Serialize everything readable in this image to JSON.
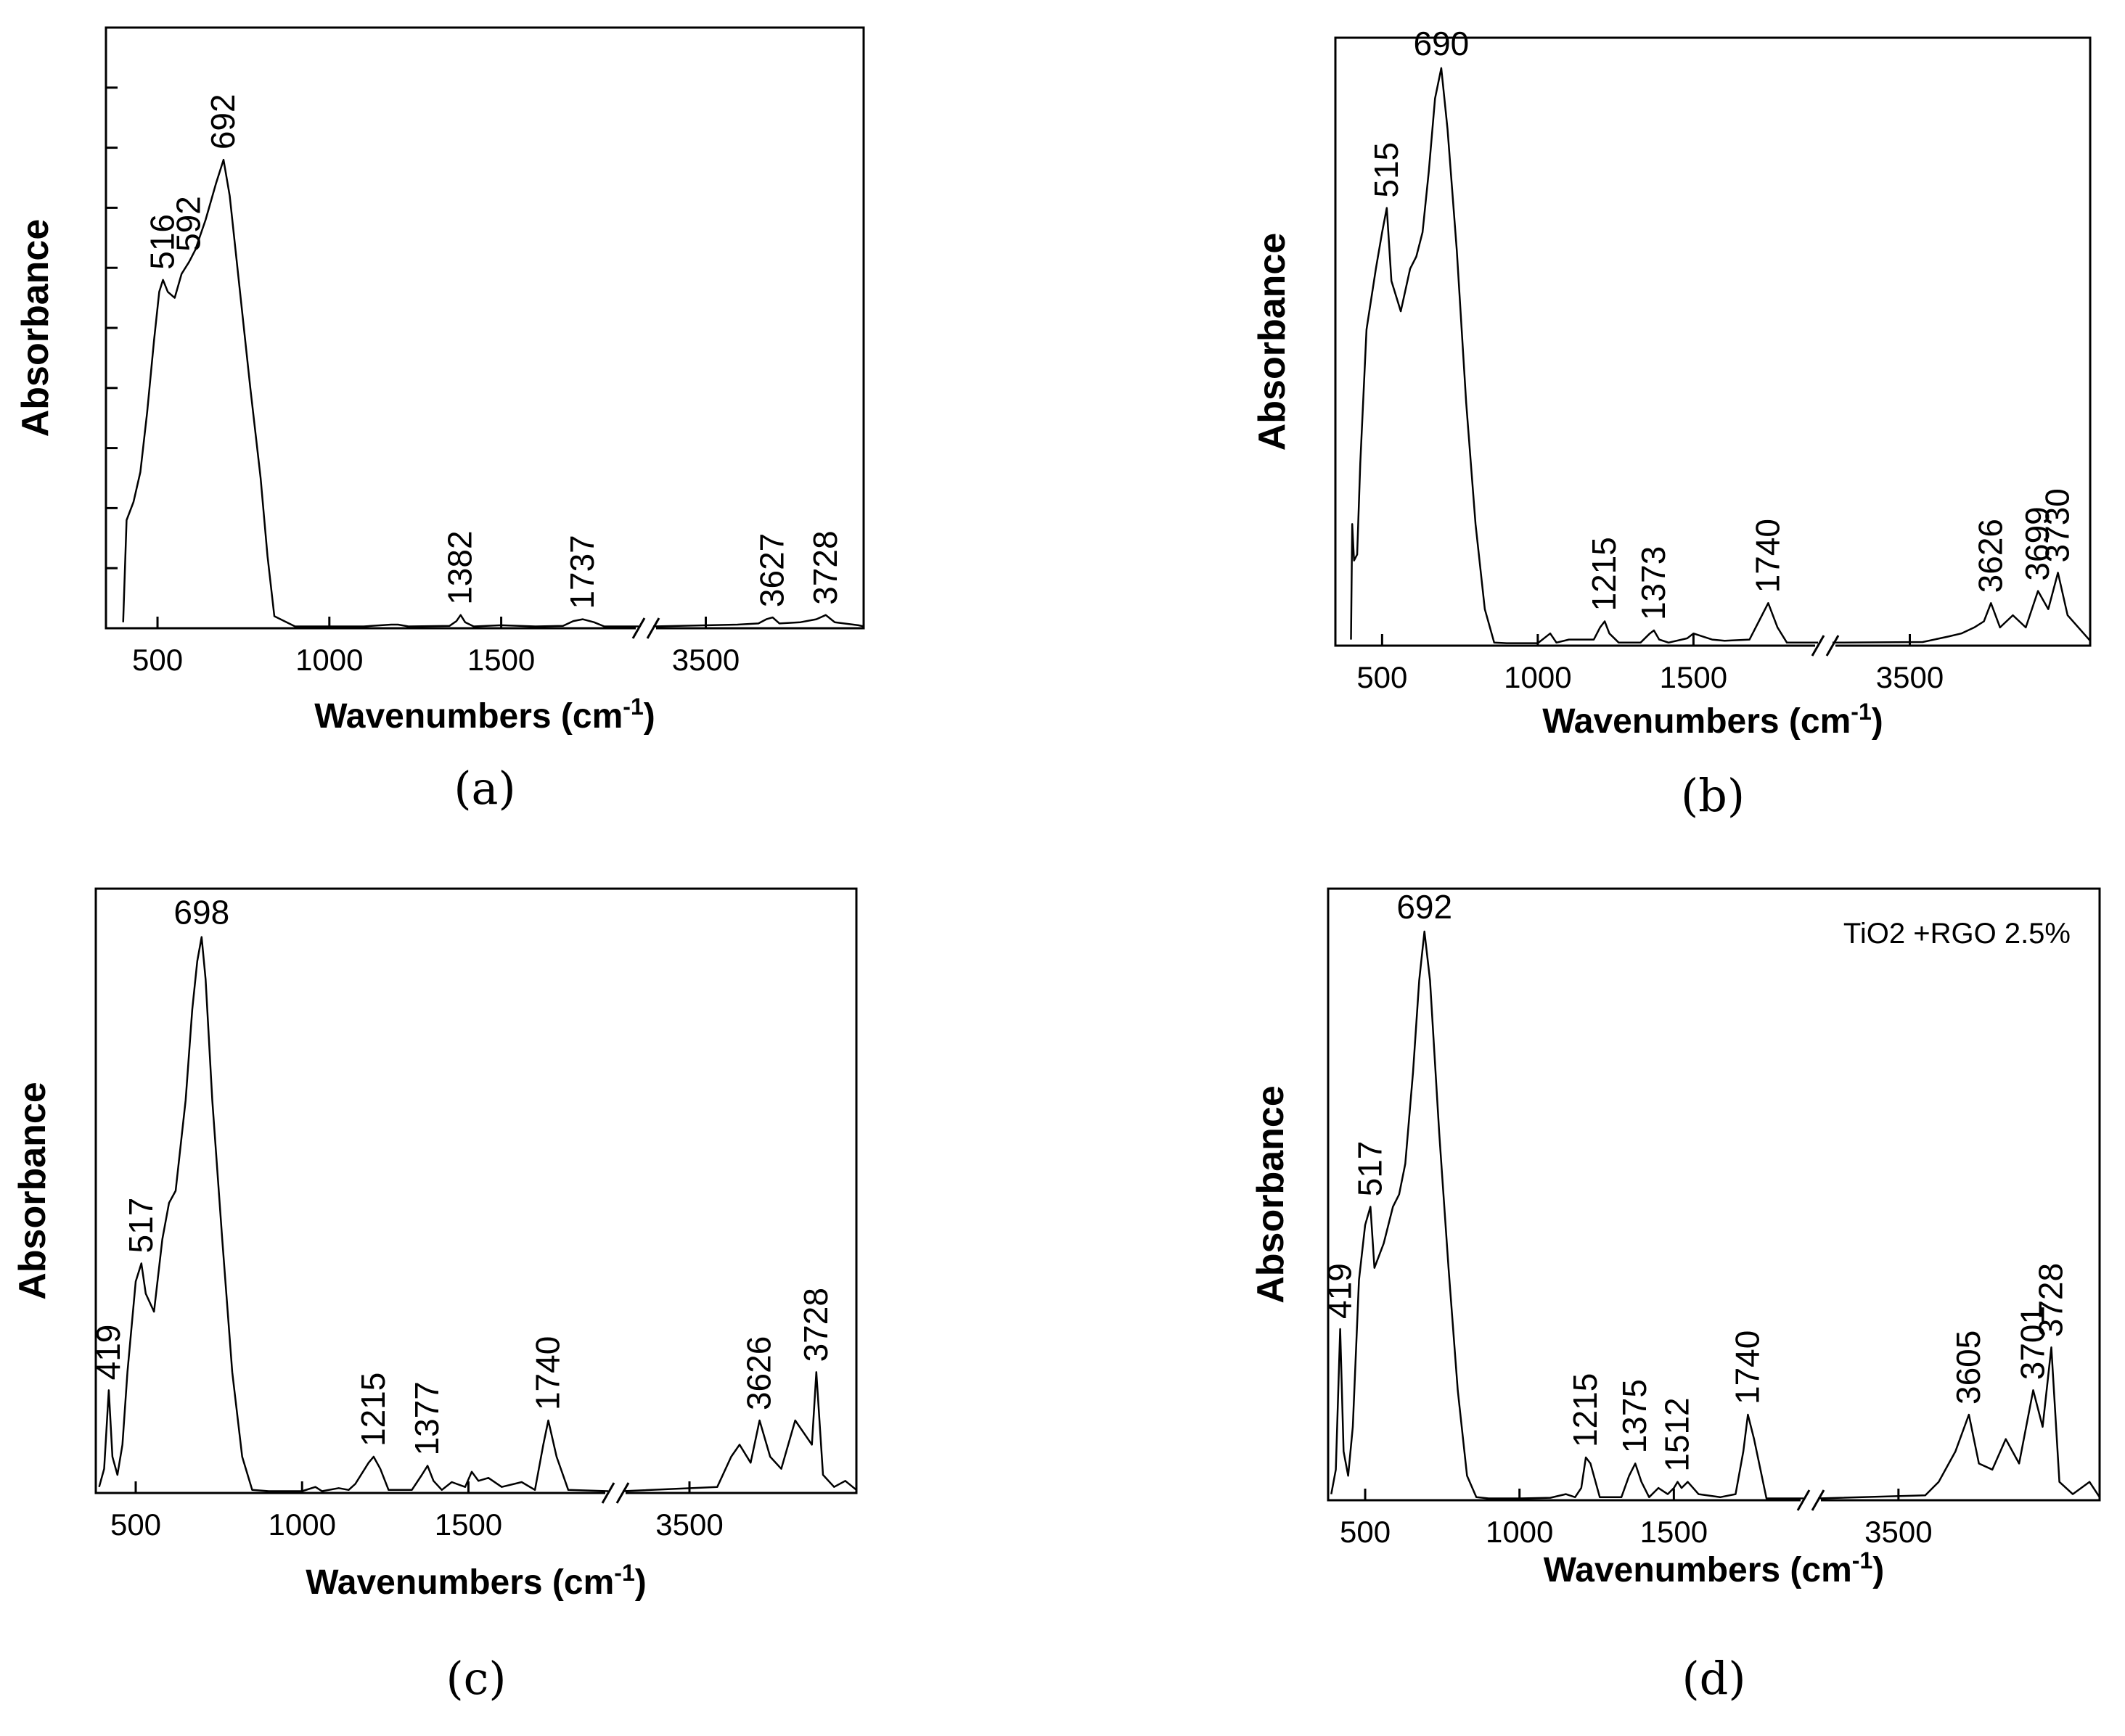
{
  "chart_data": [
    {
      "type": "line",
      "panel_label": "(a)",
      "title": "",
      "xlabel": "Wavenumbers (cm",
      "xlabel_sup": "-1",
      "xlabel_close": ")",
      "ylabel": "Absorbance",
      "x_axis_break": true,
      "segments": [
        {
          "xlim": [
            350,
            1900
          ]
        },
        {
          "xlim": [
            3400,
            3800
          ]
        }
      ],
      "xticks": [
        500,
        1000,
        1500,
        3500
      ],
      "ylim": [
        0,
        100
      ],
      "y_tick_count": 9,
      "y_tick_labels": false,
      "peak_labels": [
        {
          "x": 516,
          "text": "516"
        },
        {
          "x": 592,
          "text": "592"
        },
        {
          "x": 692,
          "text": "692"
        },
        {
          "x": 1382,
          "text": "1382"
        },
        {
          "x": 1737,
          "text": "1737"
        },
        {
          "x": 3627,
          "text": "3627"
        },
        {
          "x": 3728,
          "text": "3728"
        }
      ],
      "series": [
        {
          "x": [
            400,
            410,
            430,
            450,
            470,
            490,
            505,
            516,
            530,
            550,
            570,
            592,
            610,
            640,
            670,
            692,
            710,
            740,
            770,
            800,
            820,
            840,
            900,
            1100,
            1180,
            1200,
            1230,
            1350,
            1370,
            1382,
            1395,
            1420,
            1500,
            1600,
            1680,
            1710,
            1737,
            1770,
            1800,
            1900,
            3400,
            3560,
            3600,
            3615,
            3627,
            3640,
            3680,
            3710,
            3728,
            3745,
            3790,
            3800
          ],
          "y": [
            1,
            18,
            21,
            26,
            36,
            48,
            56,
            58,
            56,
            55,
            59,
            61,
            63,
            68,
            74,
            78,
            72,
            56,
            40,
            25,
            12,
            2,
            0.3,
            0.3,
            0.6,
            0.6,
            0.3,
            0.4,
            1.2,
            2.2,
            1,
            0.3,
            0.5,
            0.3,
            0.4,
            1.2,
            1.5,
            1,
            0.3,
            0.3,
            0.3,
            0.6,
            0.8,
            1.5,
            1.8,
            0.8,
            1,
            1.5,
            2.2,
            1,
            0.5,
            0.3
          ]
        }
      ]
    },
    {
      "type": "line",
      "panel_label": "(b)",
      "title": "",
      "xlabel": "Wavenumbers (cm",
      "xlabel_sup": "-1",
      "xlabel_close": ")",
      "ylabel": "Absorbance",
      "x_axis_break": true,
      "segments": [
        {
          "xlim": [
            350,
            1900
          ]
        },
        {
          "xlim": [
            3380,
            3780
          ]
        }
      ],
      "xticks": [
        500,
        1000,
        1500,
        3500
      ],
      "ylim": [
        0,
        100
      ],
      "y_tick_count": 0,
      "y_tick_labels": false,
      "peak_labels": [
        {
          "x": 515,
          "text": "515"
        },
        {
          "x": 690,
          "text": "690"
        },
        {
          "x": 1215,
          "text": "1215"
        },
        {
          "x": 1373,
          "text": "1373"
        },
        {
          "x": 1740,
          "text": "1740"
        },
        {
          "x": 3626,
          "text": "3626"
        },
        {
          "x": 3699,
          "text": "3699"
        },
        {
          "x": 3730,
          "text": "3730"
        }
      ],
      "series": [
        {
          "x": [
            400,
            404,
            410,
            420,
            430,
            450,
            480,
            500,
            515,
            530,
            560,
            590,
            610,
            630,
            650,
            670,
            690,
            710,
            740,
            770,
            800,
            830,
            860,
            900,
            1000,
            1040,
            1060,
            1100,
            1180,
            1200,
            1215,
            1230,
            1260,
            1330,
            1360,
            1373,
            1390,
            1420,
            1480,
            1500,
            1530,
            1560,
            1600,
            1680,
            1710,
            1740,
            1770,
            1800,
            1900,
            3380,
            3520,
            3560,
            3580,
            3600,
            3615,
            3626,
            3640,
            3660,
            3680,
            3699,
            3715,
            3730,
            3745,
            3780
          ],
          "y": [
            1,
            20,
            14,
            15,
            30,
            52,
            62,
            68,
            72,
            60,
            55,
            62,
            64,
            68,
            78,
            90,
            95,
            85,
            65,
            40,
            20,
            6,
            0.5,
            0.4,
            0.4,
            2,
            0.5,
            1,
            1,
            3,
            4,
            2,
            0.5,
            0.5,
            2,
            2.5,
            1,
            0.5,
            1.2,
            2,
            1.5,
            1,
            0.8,
            1,
            4,
            7,
            3,
            0.5,
            0.5,
            0.5,
            0.6,
            1.5,
            2,
            3,
            4,
            7,
            3,
            5,
            3,
            9,
            6,
            12,
            5,
            0.8
          ]
        }
      ]
    },
    {
      "type": "line",
      "panel_label": "(c)",
      "title": "",
      "xlabel": "Wavenumbers (cm",
      "xlabel_sup": "-1",
      "xlabel_close": ")",
      "ylabel": "Absorbance",
      "x_axis_break": true,
      "segments": [
        {
          "xlim": [
            380,
            1920
          ]
        },
        {
          "xlim": [
            3380,
            3800
          ]
        }
      ],
      "xticks": [
        500,
        1000,
        1500,
        3500
      ],
      "ylim": [
        0,
        100
      ],
      "y_tick_count": 0,
      "y_tick_labels": false,
      "peak_labels": [
        {
          "x": 419,
          "text": "419"
        },
        {
          "x": 517,
          "text": "517"
        },
        {
          "x": 698,
          "text": "698"
        },
        {
          "x": 1215,
          "text": "1215"
        },
        {
          "x": 1377,
          "text": "1377"
        },
        {
          "x": 1740,
          "text": "1740"
        },
        {
          "x": 3626,
          "text": "3626"
        },
        {
          "x": 3728,
          "text": "3728"
        }
      ],
      "series": [
        {
          "x": [
            390,
            405,
            419,
            430,
            445,
            460,
            475,
            500,
            517,
            530,
            555,
            580,
            600,
            620,
            650,
            670,
            685,
            698,
            710,
            730,
            760,
            790,
            820,
            850,
            900,
            1000,
            1040,
            1060,
            1110,
            1140,
            1160,
            1200,
            1215,
            1235,
            1260,
            1330,
            1360,
            1377,
            1395,
            1420,
            1450,
            1490,
            1510,
            1530,
            1560,
            1600,
            1660,
            1700,
            1725,
            1740,
            1765,
            1800,
            1920,
            3380,
            3550,
            3575,
            3590,
            3610,
            3626,
            3645,
            3665,
            3690,
            3705,
            3720,
            3728,
            3740,
            3760,
            3780,
            3800
          ],
          "y": [
            1,
            4,
            17,
            6,
            3,
            8,
            20,
            35,
            38,
            33,
            30,
            42,
            48,
            50,
            65,
            80,
            88,
            92,
            85,
            65,
            42,
            20,
            6,
            0.5,
            0.3,
            0.3,
            1,
            0.3,
            0.8,
            0.5,
            1.5,
            5,
            6,
            4,
            0.5,
            0.5,
            3,
            4.5,
            2,
            0.5,
            1.8,
            1,
            3.5,
            2,
            2.5,
            1,
            1.8,
            0.5,
            8,
            12,
            6,
            0.5,
            0.3,
            0.3,
            1,
            6,
            8,
            5,
            12,
            6,
            4,
            12,
            10,
            8,
            20,
            3,
            1,
            2,
            0.5
          ]
        }
      ]
    },
    {
      "type": "line",
      "panel_label": "(d)",
      "title": "",
      "xlabel": "Wavenumbers (cm",
      "xlabel_sup": "-1",
      "xlabel_close": ")",
      "ylabel": "Absorbance",
      "annotation": "TiO2 +RGO 2.5%",
      "x_axis_break": true,
      "segments": [
        {
          "xlim": [
            380,
            1920
          ]
        },
        {
          "xlim": [
            3380,
            3800
          ]
        }
      ],
      "xticks": [
        500,
        1000,
        1500,
        3500
      ],
      "ylim": [
        0,
        100
      ],
      "y_tick_count": 0,
      "y_tick_labels": false,
      "peak_labels": [
        {
          "x": 419,
          "text": "419"
        },
        {
          "x": 517,
          "text": "517"
        },
        {
          "x": 692,
          "text": "692"
        },
        {
          "x": 1215,
          "text": "1215"
        },
        {
          "x": 1375,
          "text": "1375"
        },
        {
          "x": 1512,
          "text": "1512"
        },
        {
          "x": 1740,
          "text": "1740"
        },
        {
          "x": 3605,
          "text": "3605"
        },
        {
          "x": 3701,
          "text": "3701"
        },
        {
          "x": 3728,
          "text": "3728"
        }
      ],
      "series": [
        {
          "x": [
            390,
            405,
            419,
            430,
            445,
            460,
            480,
            500,
            517,
            530,
            560,
            590,
            610,
            630,
            655,
            675,
            692,
            710,
            740,
            770,
            800,
            830,
            860,
            900,
            1000,
            1100,
            1150,
            1180,
            1200,
            1215,
            1230,
            1260,
            1330,
            1355,
            1375,
            1395,
            1420,
            1450,
            1480,
            1500,
            1512,
            1525,
            1545,
            1580,
            1650,
            1700,
            1725,
            1740,
            1760,
            1800,
            1920,
            3380,
            3540,
            3560,
            3585,
            3605,
            3620,
            3640,
            3660,
            3680,
            3701,
            3715,
            3728,
            3740,
            3760,
            3785,
            3800
          ],
          "y": [
            1,
            5,
            28,
            8,
            4,
            12,
            36,
            45,
            48,
            38,
            42,
            48,
            50,
            55,
            70,
            85,
            93,
            85,
            60,
            38,
            18,
            4,
            0.5,
            0.3,
            0.3,
            0.4,
            1,
            0.5,
            2,
            7,
            6,
            0.5,
            0.5,
            4,
            6,
            3,
            0.5,
            2,
            1,
            2,
            3,
            2,
            3,
            1,
            0.5,
            1,
            8,
            14,
            10,
            0.3,
            0.3,
            0.3,
            0.8,
            3,
            8,
            14,
            6,
            5,
            10,
            6,
            18,
            12,
            25,
            3,
            1,
            3,
            0.5
          ]
        }
      ]
    }
  ]
}
